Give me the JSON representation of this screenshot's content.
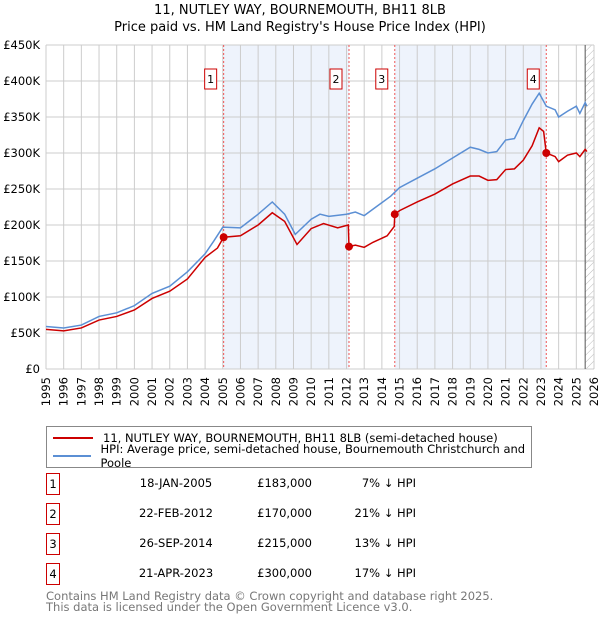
{
  "chart_data": {
    "type": "line",
    "title": "11, NUTLEY WAY, BOURNEMOUTH, BH11 8LB",
    "subtitle": "Price paid vs. HM Land Registry's House Price Index (HPI)",
    "xlim": [
      1995,
      2026
    ],
    "ylim": [
      0,
      450000
    ],
    "yticks": [
      0,
      50000,
      100000,
      150000,
      200000,
      250000,
      300000,
      350000,
      400000,
      450000
    ],
    "ytick_labels": [
      "£0",
      "£50K",
      "£100K",
      "£150K",
      "£200K",
      "£250K",
      "£300K",
      "£350K",
      "£400K",
      "£450K"
    ],
    "xticks": [
      1995,
      1996,
      1997,
      1998,
      1999,
      2000,
      2001,
      2002,
      2003,
      2004,
      2005,
      2006,
      2007,
      2008,
      2009,
      2010,
      2011,
      2012,
      2013,
      2014,
      2015,
      2016,
      2017,
      2018,
      2019,
      2020,
      2021,
      2022,
      2023,
      2024,
      2025,
      2026
    ],
    "grid": true,
    "shaded_ranges": [
      [
        2005.05,
        2012.14
      ],
      [
        2014.73,
        2023.3
      ]
    ],
    "hatched_from": 2025.5,
    "series": [
      {
        "name": "11, NUTLEY WAY, BOURNEMOUTH, BH11 8LB (semi-detached house)",
        "color": "#cc0000",
        "x": [
          1995,
          1996,
          1997,
          1998,
          1999,
          2000,
          2001,
          2002,
          2003,
          2004,
          2004.7,
          2005.05,
          2006,
          2007,
          2007.8,
          2008.5,
          2009.2,
          2010,
          2010.7,
          2011.5,
          2012.1,
          2012.14,
          2012.5,
          2013,
          2013.5,
          2014.3,
          2014.7,
          2014.73,
          2015,
          2016,
          2017,
          2018,
          2019,
          2019.5,
          2020,
          2020.5,
          2021,
          2021.5,
          2022,
          2022.5,
          2022.9,
          2023.15,
          2023.3,
          2023.8,
          2024,
          2024.5,
          2025,
          2025.2,
          2025.5,
          2025.6
        ],
        "y": [
          55000,
          53000,
          57000,
          68000,
          73000,
          82000,
          98000,
          108000,
          125000,
          155000,
          168000,
          183000,
          185000,
          200000,
          217000,
          205000,
          173000,
          195000,
          202000,
          196000,
          200000,
          170000,
          172000,
          169000,
          176000,
          185000,
          198000,
          215000,
          220000,
          232000,
          243000,
          257000,
          268000,
          268000,
          262000,
          263000,
          277000,
          278000,
          290000,
          310000,
          335000,
          330000,
          300000,
          295000,
          288000,
          297000,
          300000,
          295000,
          305000,
          302000
        ]
      },
      {
        "name": "HPI: Average price, semi-detached house, Bournemouth Christchurch and Poole",
        "color": "#5b8fd4",
        "x": [
          1995,
          1996,
          1997,
          1998,
          1999,
          2000,
          2001,
          2002,
          2003,
          2004,
          2004.5,
          2005,
          2006,
          2007,
          2007.8,
          2008.5,
          2009.1,
          2010,
          2010.5,
          2011,
          2012,
          2012.5,
          2013,
          2013.5,
          2014.5,
          2015,
          2016,
          2017,
          2018,
          2019,
          2019.5,
          2020,
          2020.5,
          2021,
          2021.5,
          2022,
          2022.5,
          2022.9,
          2023.3,
          2023.8,
          2024,
          2024.5,
          2025,
          2025.2,
          2025.5,
          2025.6
        ],
        "y": [
          59000,
          57000,
          61000,
          73000,
          78000,
          88000,
          105000,
          115000,
          135000,
          160000,
          178000,
          197000,
          196000,
          215000,
          232000,
          215000,
          187000,
          208000,
          215000,
          212000,
          215000,
          218000,
          213000,
          222000,
          240000,
          252000,
          265000,
          278000,
          293000,
          308000,
          305000,
          300000,
          302000,
          318000,
          320000,
          345000,
          368000,
          383000,
          365000,
          360000,
          350000,
          358000,
          365000,
          355000,
          370000,
          365000
        ]
      }
    ],
    "sales": [
      {
        "label": "1",
        "date": "18-JAN-2005",
        "price": "£183,000",
        "hpi": "7% ↓ HPI",
        "x": 2005.05,
        "y": 183000
      },
      {
        "label": "2",
        "date": "22-FEB-2012",
        "price": "£170,000",
        "hpi": "21% ↓ HPI",
        "x": 2012.14,
        "y": 170000
      },
      {
        "label": "3",
        "date": "26-SEP-2014",
        "price": "£215,000",
        "hpi": "13% ↓ HPI",
        "x": 2014.73,
        "y": 215000
      },
      {
        "label": "4",
        "date": "21-APR-2023",
        "price": "£300,000",
        "hpi": "17% ↓ HPI",
        "x": 2023.3,
        "y": 300000
      }
    ]
  },
  "footer": {
    "line1": "Contains HM Land Registry data © Crown copyright and database right 2025.",
    "line2": "This data is licensed under the Open Government Licence v3.0."
  }
}
